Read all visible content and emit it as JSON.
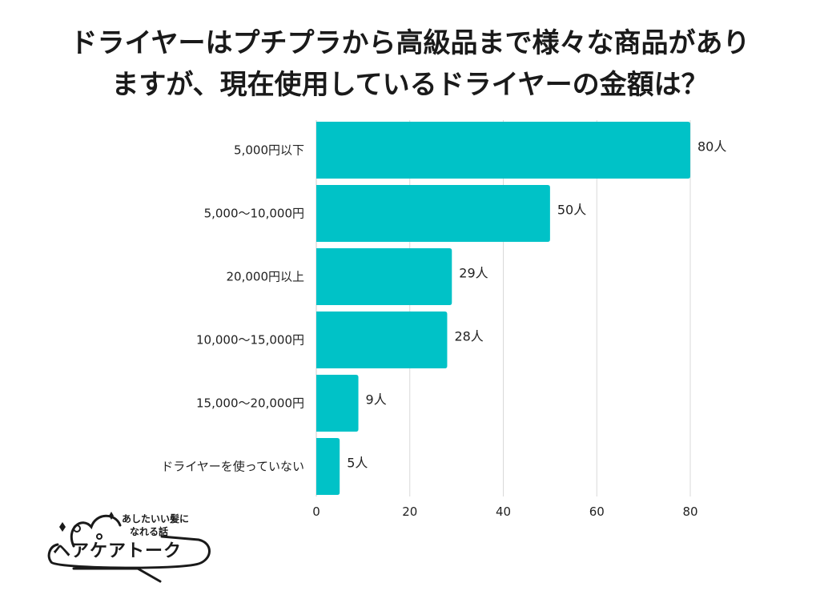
{
  "title": {
    "line1": "ドライヤーはプチプラから高級品まで様々な商品があり",
    "line2": "ますが、現在使用しているドライヤーの金額は？"
  },
  "chart_data": {
    "type": "bar",
    "orientation": "horizontal",
    "categories": [
      "5,000円以下",
      "5,000〜10,000円",
      "20,000円以上",
      "10,000〜15,000円",
      "15,000〜20,000円",
      "ドライヤーを使っていない"
    ],
    "values": [
      80,
      50,
      29,
      28,
      9,
      5
    ],
    "value_labels": [
      "80人",
      "50人",
      "29人",
      "28人",
      "9人",
      "5人"
    ],
    "xlim": [
      0,
      80
    ],
    "x_ticks": [
      "0",
      "20",
      "40",
      "60",
      "80"
    ],
    "grid": true,
    "bar_color": "#00C2C7",
    "grid_color": "#d9d9d9"
  },
  "logo": {
    "sub_line1": "あしたいい髪に",
    "sub_line2": "なれる話",
    "main": "ヘアケアトーク"
  }
}
